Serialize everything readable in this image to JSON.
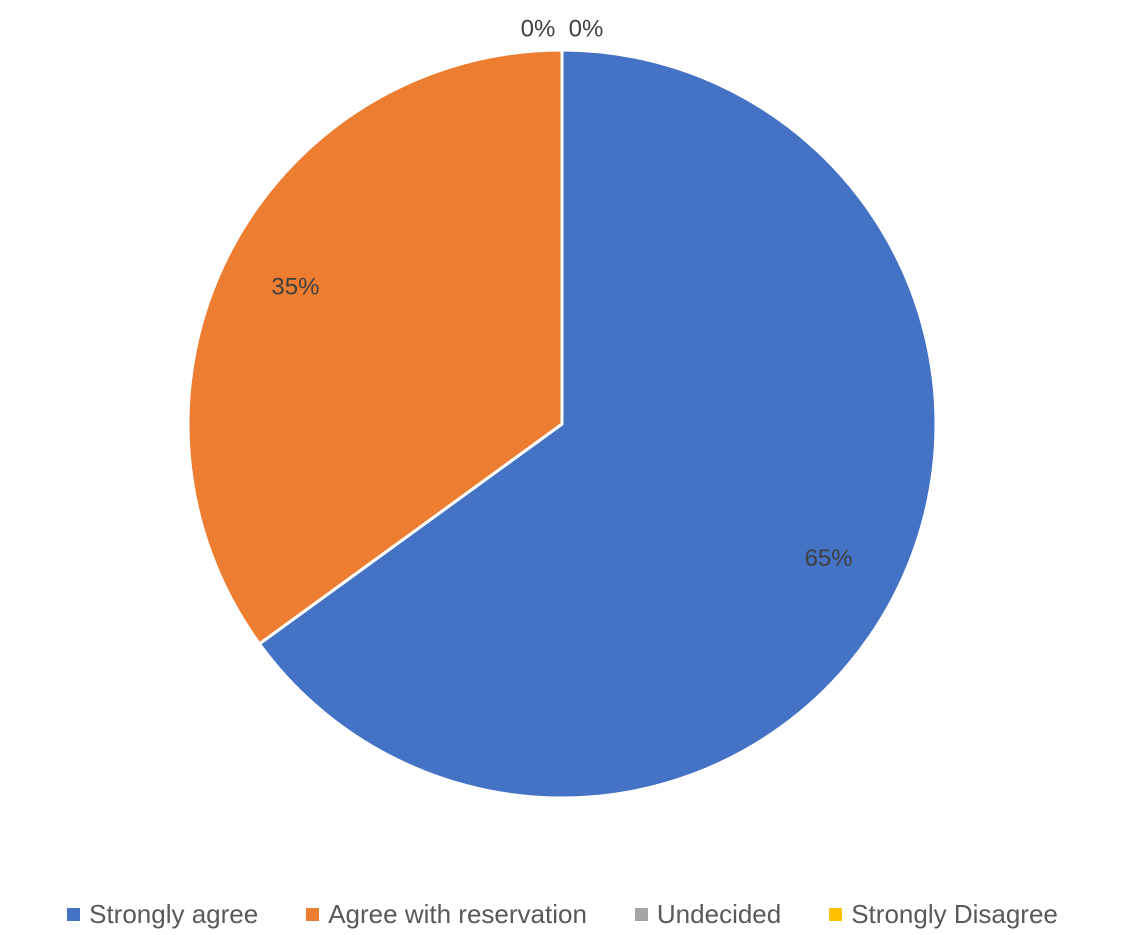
{
  "chart_data": {
    "type": "pie",
    "title": "",
    "slices": [
      {
        "label": "Strongly agree",
        "value": 65,
        "data_label": "65%",
        "color": "#4472C4"
      },
      {
        "label": "Agree with reservation",
        "value": 35,
        "data_label": "35%",
        "color": "#ED7D31"
      },
      {
        "label": "Undecided",
        "value": 0,
        "data_label": "0%",
        "color": "#A5A5A5"
      },
      {
        "label": "Strongly Disagree",
        "value": 0,
        "data_label": "0%",
        "color": "#FFC000"
      }
    ],
    "start_angle_deg": 0,
    "direction": "clockwise",
    "legend": {
      "position": "bottom"
    }
  }
}
